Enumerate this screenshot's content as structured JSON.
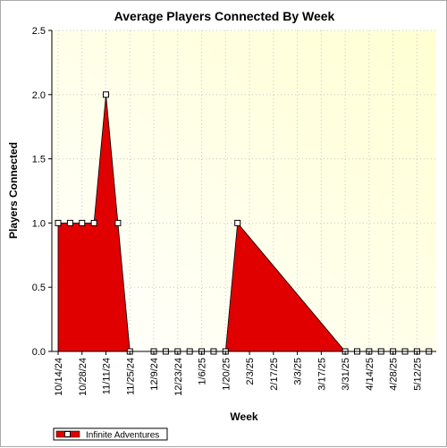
{
  "chart_data": {
    "type": "area",
    "title": "Average Players Connected By Week",
    "xlabel": "Week",
    "ylabel": "Players Connected",
    "ylim": [
      0,
      2.5
    ],
    "yticks": [
      "0.0",
      "0.5",
      "1.0",
      "1.5",
      "2.0",
      "2.5"
    ],
    "x_tick_labels": [
      "10/14/24",
      "10/28/24",
      "11/11/24",
      "11/25/24",
      "12/9/24",
      "12/23/24",
      "1/6/25",
      "1/20/25",
      "2/3/25",
      "2/17/25",
      "3/3/25",
      "3/17/25",
      "3/31/25",
      "4/14/25",
      "4/28/25",
      "5/12/25"
    ],
    "grid": true,
    "legend_position": "bottom-left",
    "series": [
      {
        "name": "Infinite Adventures",
        "color": "#e00000",
        "points": [
          {
            "week": 0,
            "value": 1
          },
          {
            "week": 1,
            "value": 1
          },
          {
            "week": 2,
            "value": 1
          },
          {
            "week": 3,
            "value": 1
          },
          {
            "week": 4,
            "value": 2
          },
          {
            "week": 5,
            "value": 1
          },
          {
            "week": 6,
            "value": 0
          },
          {
            "week": 8,
            "value": 0
          },
          {
            "week": 9,
            "value": 0
          },
          {
            "week": 10,
            "value": 0
          },
          {
            "week": 11,
            "value": 0
          },
          {
            "week": 12,
            "value": 0
          },
          {
            "week": 13,
            "value": 0
          },
          {
            "week": 14,
            "value": 0
          },
          {
            "week": 15,
            "value": 1
          },
          {
            "week": 24,
            "value": 0
          },
          {
            "week": 25,
            "value": 0
          },
          {
            "week": 26,
            "value": 0
          },
          {
            "week": 27,
            "value": 0
          },
          {
            "week": 28,
            "value": 0
          },
          {
            "week": 29,
            "value": 0
          },
          {
            "week": 30,
            "value": 0
          },
          {
            "week": 31,
            "value": 0
          }
        ]
      }
    ]
  }
}
